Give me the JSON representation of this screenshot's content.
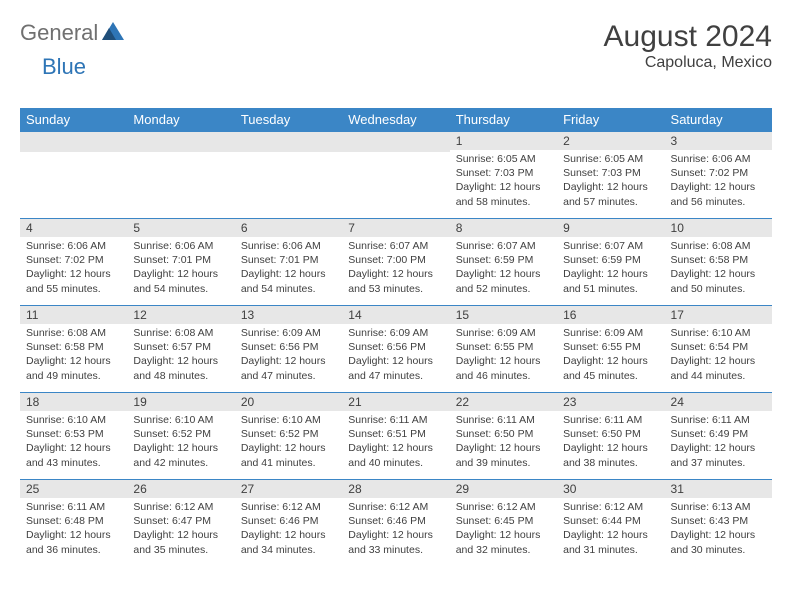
{
  "brand": {
    "part1": "General",
    "part2": "Blue"
  },
  "title": "August 2024",
  "location": "Capoluca, Mexico",
  "colors": {
    "header_bg": "#3b86c6",
    "header_text": "#ffffff",
    "daynum_bg": "#e7e7e7",
    "cell_border": "#3b86c6",
    "text": "#404040",
    "logo_gray": "#707070",
    "logo_blue": "#2e75b6",
    "background": "#ffffff"
  },
  "weekdays": [
    "Sunday",
    "Monday",
    "Tuesday",
    "Wednesday",
    "Thursday",
    "Friday",
    "Saturday"
  ],
  "days": [
    {
      "n": "1",
      "sr": "6:05 AM",
      "ss": "7:03 PM",
      "dl": "12 hours and 58 minutes."
    },
    {
      "n": "2",
      "sr": "6:05 AM",
      "ss": "7:03 PM",
      "dl": "12 hours and 57 minutes."
    },
    {
      "n": "3",
      "sr": "6:06 AM",
      "ss": "7:02 PM",
      "dl": "12 hours and 56 minutes."
    },
    {
      "n": "4",
      "sr": "6:06 AM",
      "ss": "7:02 PM",
      "dl": "12 hours and 55 minutes."
    },
    {
      "n": "5",
      "sr": "6:06 AM",
      "ss": "7:01 PM",
      "dl": "12 hours and 54 minutes."
    },
    {
      "n": "6",
      "sr": "6:06 AM",
      "ss": "7:01 PM",
      "dl": "12 hours and 54 minutes."
    },
    {
      "n": "7",
      "sr": "6:07 AM",
      "ss": "7:00 PM",
      "dl": "12 hours and 53 minutes."
    },
    {
      "n": "8",
      "sr": "6:07 AM",
      "ss": "6:59 PM",
      "dl": "12 hours and 52 minutes."
    },
    {
      "n": "9",
      "sr": "6:07 AM",
      "ss": "6:59 PM",
      "dl": "12 hours and 51 minutes."
    },
    {
      "n": "10",
      "sr": "6:08 AM",
      "ss": "6:58 PM",
      "dl": "12 hours and 50 minutes."
    },
    {
      "n": "11",
      "sr": "6:08 AM",
      "ss": "6:58 PM",
      "dl": "12 hours and 49 minutes."
    },
    {
      "n": "12",
      "sr": "6:08 AM",
      "ss": "6:57 PM",
      "dl": "12 hours and 48 minutes."
    },
    {
      "n": "13",
      "sr": "6:09 AM",
      "ss": "6:56 PM",
      "dl": "12 hours and 47 minutes."
    },
    {
      "n": "14",
      "sr": "6:09 AM",
      "ss": "6:56 PM",
      "dl": "12 hours and 47 minutes."
    },
    {
      "n": "15",
      "sr": "6:09 AM",
      "ss": "6:55 PM",
      "dl": "12 hours and 46 minutes."
    },
    {
      "n": "16",
      "sr": "6:09 AM",
      "ss": "6:55 PM",
      "dl": "12 hours and 45 minutes."
    },
    {
      "n": "17",
      "sr": "6:10 AM",
      "ss": "6:54 PM",
      "dl": "12 hours and 44 minutes."
    },
    {
      "n": "18",
      "sr": "6:10 AM",
      "ss": "6:53 PM",
      "dl": "12 hours and 43 minutes."
    },
    {
      "n": "19",
      "sr": "6:10 AM",
      "ss": "6:52 PM",
      "dl": "12 hours and 42 minutes."
    },
    {
      "n": "20",
      "sr": "6:10 AM",
      "ss": "6:52 PM",
      "dl": "12 hours and 41 minutes."
    },
    {
      "n": "21",
      "sr": "6:11 AM",
      "ss": "6:51 PM",
      "dl": "12 hours and 40 minutes."
    },
    {
      "n": "22",
      "sr": "6:11 AM",
      "ss": "6:50 PM",
      "dl": "12 hours and 39 minutes."
    },
    {
      "n": "23",
      "sr": "6:11 AM",
      "ss": "6:50 PM",
      "dl": "12 hours and 38 minutes."
    },
    {
      "n": "24",
      "sr": "6:11 AM",
      "ss": "6:49 PM",
      "dl": "12 hours and 37 minutes."
    },
    {
      "n": "25",
      "sr": "6:11 AM",
      "ss": "6:48 PM",
      "dl": "12 hours and 36 minutes."
    },
    {
      "n": "26",
      "sr": "6:12 AM",
      "ss": "6:47 PM",
      "dl": "12 hours and 35 minutes."
    },
    {
      "n": "27",
      "sr": "6:12 AM",
      "ss": "6:46 PM",
      "dl": "12 hours and 34 minutes."
    },
    {
      "n": "28",
      "sr": "6:12 AM",
      "ss": "6:46 PM",
      "dl": "12 hours and 33 minutes."
    },
    {
      "n": "29",
      "sr": "6:12 AM",
      "ss": "6:45 PM",
      "dl": "12 hours and 32 minutes."
    },
    {
      "n": "30",
      "sr": "6:12 AM",
      "ss": "6:44 PM",
      "dl": "12 hours and 31 minutes."
    },
    {
      "n": "31",
      "sr": "6:13 AM",
      "ss": "6:43 PM",
      "dl": "12 hours and 30 minutes."
    }
  ],
  "labels": {
    "sunrise": "Sunrise: ",
    "sunset": "Sunset: ",
    "daylight": "Daylight: "
  },
  "first_weekday_index": 4
}
